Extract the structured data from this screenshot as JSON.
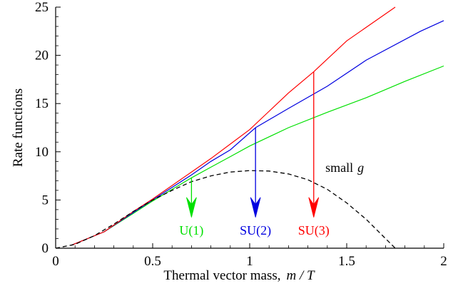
{
  "chart_data": {
    "type": "line",
    "xlabel": "Thermal vector mass,",
    "xlabel_math": "m / T",
    "ylabel": "Rate functions",
    "xlim": [
      0,
      2
    ],
    "ylim": [
      0,
      25
    ],
    "x_ticks": [
      {
        "value": 0,
        "label": "0"
      },
      {
        "value": 0.5,
        "label": "0.5"
      },
      {
        "value": 1,
        "label": "1"
      },
      {
        "value": 1.5,
        "label": "1.5"
      },
      {
        "value": 2,
        "label": "2"
      }
    ],
    "y_ticks": [
      {
        "value": 0,
        "label": "0"
      },
      {
        "value": 5,
        "label": "5"
      },
      {
        "value": 10,
        "label": "10"
      },
      {
        "value": 15,
        "label": "15"
      },
      {
        "value": 20,
        "label": "20"
      },
      {
        "value": 25,
        "label": "25"
      }
    ],
    "grid": false,
    "series": [
      {
        "name": "U(1)",
        "color": "#00e000",
        "style": "solid",
        "points": [
          [
            0.08,
            0.3
          ],
          [
            0.25,
            1.7
          ],
          [
            0.4,
            3.6
          ],
          [
            0.5,
            4.9
          ],
          [
            0.6,
            6.1
          ],
          [
            0.7,
            7.3
          ],
          [
            0.8,
            8.4
          ],
          [
            0.9,
            9.5
          ],
          [
            1.0,
            10.6
          ],
          [
            1.2,
            12.5
          ],
          [
            1.4,
            14.1
          ],
          [
            1.6,
            15.6
          ],
          [
            1.8,
            17.3
          ],
          [
            2.0,
            18.9
          ]
        ]
      },
      {
        "name": "SU(2)",
        "color": "#0000e0",
        "style": "solid",
        "points": [
          [
            0.08,
            0.3
          ],
          [
            0.25,
            1.7
          ],
          [
            0.4,
            3.7
          ],
          [
            0.5,
            5.0
          ],
          [
            0.6,
            6.3
          ],
          [
            0.7,
            7.6
          ],
          [
            0.8,
            9.0
          ],
          [
            0.9,
            10.2
          ],
          [
            1.03,
            12.5
          ],
          [
            1.2,
            14.5
          ],
          [
            1.4,
            16.8
          ],
          [
            1.6,
            19.5
          ],
          [
            1.88,
            22.5
          ],
          [
            2.0,
            23.6
          ]
        ]
      },
      {
        "name": "SU(3)",
        "color": "#ff0000",
        "style": "solid",
        "points": [
          [
            0.08,
            0.3
          ],
          [
            0.25,
            1.7
          ],
          [
            0.4,
            3.8
          ],
          [
            0.5,
            5.1
          ],
          [
            0.6,
            6.5
          ],
          [
            0.7,
            7.9
          ],
          [
            0.8,
            9.3
          ],
          [
            0.9,
            10.8
          ],
          [
            1.0,
            12.3
          ],
          [
            1.1,
            14.2
          ],
          [
            1.2,
            16.1
          ],
          [
            1.33,
            18.3
          ],
          [
            1.5,
            21.5
          ],
          [
            1.75,
            25.0
          ]
        ]
      },
      {
        "name": "small g",
        "color": "#000000",
        "style": "dashed",
        "points": [
          [
            0,
            0
          ],
          [
            0.1,
            0.4
          ],
          [
            0.2,
            1.3
          ],
          [
            0.3,
            2.5
          ],
          [
            0.4,
            3.8
          ],
          [
            0.5,
            5.0
          ],
          [
            0.6,
            6.0
          ],
          [
            0.7,
            6.9
          ],
          [
            0.8,
            7.5
          ],
          [
            0.9,
            7.9
          ],
          [
            1.0,
            8.05
          ],
          [
            1.1,
            8.0
          ],
          [
            1.2,
            7.7
          ],
          [
            1.3,
            7.1
          ],
          [
            1.4,
            6.1
          ],
          [
            1.5,
            4.7
          ],
          [
            1.6,
            3.0
          ],
          [
            1.7,
            1.0
          ],
          [
            1.75,
            0
          ]
        ]
      }
    ],
    "arrows": [
      {
        "label": "U(1)",
        "color": "#00e000",
        "x": 0.7,
        "y_from": 7.3,
        "y_to": 3.2
      },
      {
        "label": "SU(2)",
        "color": "#0000e0",
        "x": 1.03,
        "y_from": 12.5,
        "y_to": 3.2
      },
      {
        "label": "SU(3)",
        "color": "#ff0000",
        "x": 1.33,
        "y_from": 18.3,
        "y_to": 3.2
      }
    ],
    "annotations": [
      {
        "text": "U(1)",
        "color": "#00e000",
        "x": 0.7,
        "y": 1.4
      },
      {
        "text": "SU(2)",
        "color": "#0000e0",
        "x": 1.03,
        "y": 1.4
      },
      {
        "text": "SU(3)",
        "color": "#ff0000",
        "x": 1.33,
        "y": 1.4
      },
      {
        "text": "small",
        "italic_suffix": "g",
        "color": "#000000",
        "x": 1.39,
        "y": 7.9
      }
    ]
  }
}
